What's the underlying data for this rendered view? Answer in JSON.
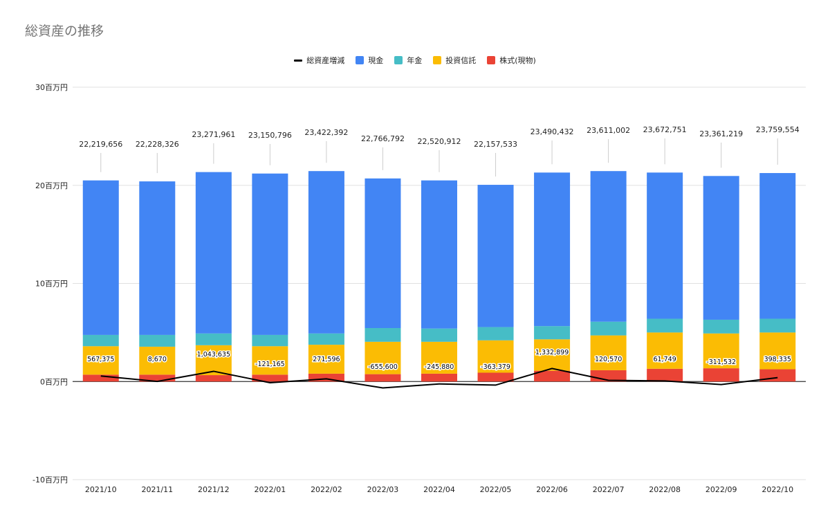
{
  "chart_data": {
    "type": "bar",
    "title": "総資産の推移",
    "categories": [
      "2021/10",
      "2021/11",
      "2021/12",
      "2022/01",
      "2022/02",
      "2022/03",
      "2022/04",
      "2022/05",
      "2022/06",
      "2022/07",
      "2022/08",
      "2022/09",
      "2022/10"
    ],
    "ylim": [
      -10000000,
      30000000
    ],
    "yticks": [
      {
        "value": 30000000,
        "label": "30百万円"
      },
      {
        "value": 20000000,
        "label": "20百万円"
      },
      {
        "value": 10000000,
        "label": "10百万円"
      },
      {
        "value": 0,
        "label": "0百万円"
      },
      {
        "value": -10000000,
        "label": "-10百万円"
      }
    ],
    "legend_position": "top",
    "grid": true,
    "series": [
      {
        "name": "株式(現物)",
        "kind": "stacked-bar",
        "color": "#EA4335",
        "values": [
          700000,
          700000,
          650000,
          700000,
          800000,
          750000,
          800000,
          900000,
          1100000,
          1150000,
          1300000,
          1350000,
          1250000
        ]
      },
      {
        "name": "投資信託",
        "kind": "stacked-bar",
        "color": "#FBBC04",
        "values": [
          2900000,
          2850000,
          3050000,
          2900000,
          2950000,
          3300000,
          3250000,
          3300000,
          3200000,
          3550000,
          3700000,
          3550000,
          3750000
        ]
      },
      {
        "name": "年金",
        "kind": "stacked-bar",
        "color": "#46BDC6",
        "values": [
          1150000,
          1200000,
          1200000,
          1150000,
          1150000,
          1400000,
          1350000,
          1350000,
          1350000,
          1400000,
          1400000,
          1400000,
          1400000
        ]
      },
      {
        "name": "現金",
        "kind": "stacked-bar",
        "color": "#4285F4",
        "values": [
          15750000,
          15650000,
          16450000,
          16450000,
          16550000,
          15250000,
          15100000,
          14500000,
          15650000,
          15350000,
          14900000,
          14650000,
          14850000
        ]
      },
      {
        "name": "総資産増減",
        "kind": "line",
        "color": "#000000",
        "values": [
          567375,
          8670,
          1043635,
          -121165,
          271596,
          -655600,
          -245880,
          -363379,
          1332899,
          120570,
          61749,
          -311532,
          398335
        ],
        "labels": [
          "567,375",
          "8,670",
          "1,043,635",
          "-121,165",
          "271,596",
          "-655,600",
          "-245,880",
          "-363,379",
          "1,332,899",
          "120,570",
          "61,749",
          "-311,532",
          "398,335"
        ]
      }
    ],
    "totals": [
      22219656,
      22228326,
      23271961,
      23150796,
      23422392,
      22766792,
      22520912,
      22157533,
      23490432,
      23611002,
      23672751,
      23361219,
      23759554
    ],
    "total_labels": [
      "22,219,656",
      "22,228,326",
      "23,271,961",
      "23,150,796",
      "23,422,392",
      "22,766,792",
      "22,520,912",
      "22,157,533",
      "23,490,432",
      "23,611,002",
      "23,672,751",
      "23,361,219",
      "23,759,554"
    ]
  },
  "legend": [
    {
      "label": "総資産増減",
      "color": "#000000",
      "shape": "line"
    },
    {
      "label": "現金",
      "color": "#4285F4",
      "shape": "box"
    },
    {
      "label": "年金",
      "color": "#46BDC6",
      "shape": "box"
    },
    {
      "label": "投資信託",
      "color": "#FBBC04",
      "shape": "box"
    },
    {
      "label": "株式(現物)",
      "color": "#EA4335",
      "shape": "box"
    }
  ]
}
